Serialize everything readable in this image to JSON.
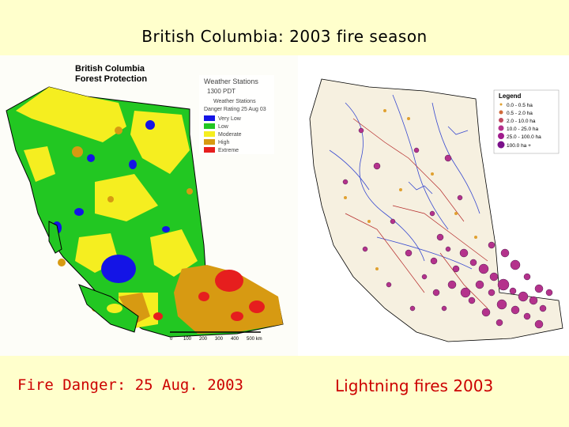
{
  "title": "British Columbia: 2003 fire season",
  "left_map": {
    "header_line1": "British Columbia",
    "header_line2": "Forest Protection",
    "stations_title": "Weather Stations",
    "stations_time": "1300 PDT",
    "stations_symbol": "Weather Stations",
    "rating_title": "Danger Rating 25 Aug 03",
    "legend": [
      {
        "label": "Very Low",
        "color": "#1414e6"
      },
      {
        "label": "Low",
        "color": "#22c722"
      },
      {
        "label": "Moderate",
        "color": "#f5ee20"
      },
      {
        "label": "High",
        "color": "#d79a12"
      },
      {
        "label": "Extreme",
        "color": "#e61e1e"
      }
    ],
    "scale_labels": [
      "0",
      "100",
      "200",
      "300",
      "400",
      "500 km"
    ],
    "caption": "Fire Danger: 25 Aug. 2003"
  },
  "right_map": {
    "legend_title": "Legend",
    "legend": [
      "0.0 - 0.5 ha",
      "0.5 - 2.0 ha",
      "2.0 - 10.0 ha",
      "10.0 - 25.0 ha",
      "25.0 - 100.0 ha",
      "100.0 ha +"
    ],
    "caption": "Lightning fires 2003"
  }
}
